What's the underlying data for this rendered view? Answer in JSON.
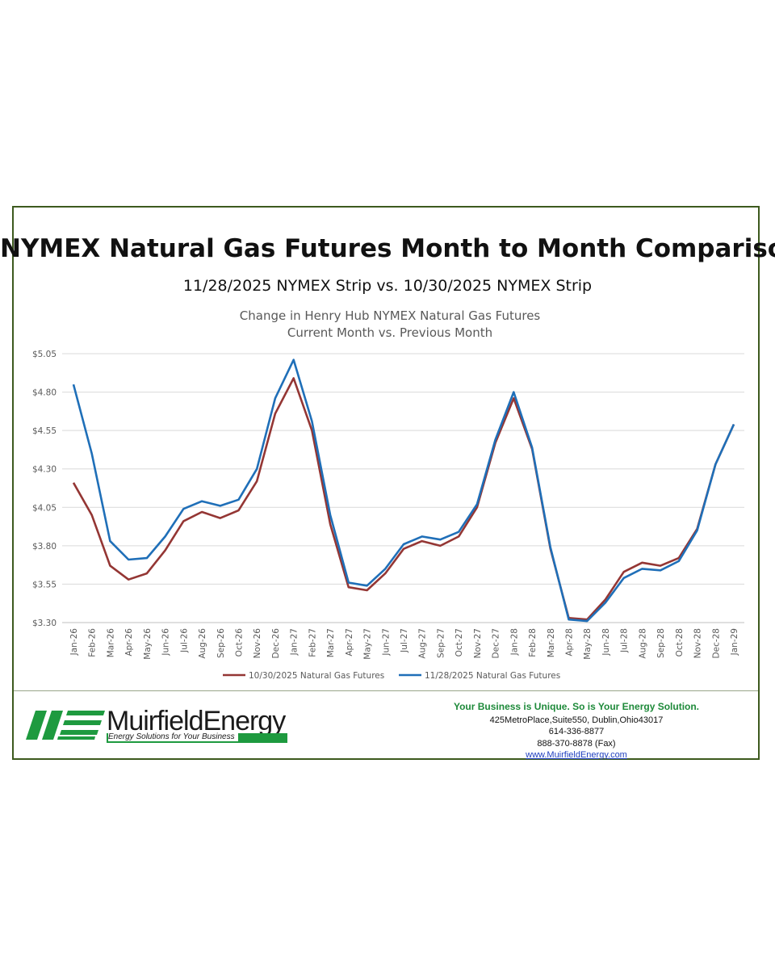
{
  "header": {
    "title": "NYMEX Natural Gas Futures Month to Month Comparison",
    "subtitle": "11/28/2025 NYMEX Strip vs. 10/30/2025 NYMEX Strip"
  },
  "chart_data": {
    "type": "line",
    "title": "Change in Henry Hub NYMEX Natural Gas Futures",
    "subtitle": "Current Month vs. Previous Month",
    "xlabel": "",
    "ylabel": "",
    "ylim": [
      3.3,
      5.05
    ],
    "yticks": [
      "$5.05",
      "$4.80",
      "$4.55",
      "$4.30",
      "$4.05",
      "$3.80",
      "$3.55",
      "$3.30"
    ],
    "ytick_values": [
      5.05,
      4.8,
      4.55,
      4.3,
      4.05,
      3.8,
      3.55,
      3.3
    ],
    "grid": true,
    "legend": "bottom",
    "categories": [
      "Jan-26",
      "Feb-26",
      "Mar-26",
      "Apr-26",
      "May-26",
      "Jun-26",
      "Jul-26",
      "Aug-26",
      "Sep-26",
      "Oct-26",
      "Nov-26",
      "Dec-26",
      "Jan-27",
      "Feb-27",
      "Mar-27",
      "Apr-27",
      "May-27",
      "Jun-27",
      "Jul-27",
      "Aug-27",
      "Sep-27",
      "Oct-27",
      "Nov-27",
      "Dec-27",
      "Jan-28",
      "Feb-28",
      "Mar-28",
      "Apr-28",
      "May-28",
      "Jun-28",
      "Jul-28",
      "Aug-28",
      "Sep-28",
      "Oct-28",
      "Nov-28",
      "Dec-28",
      "Jan-29"
    ],
    "series": [
      {
        "name": "10/30/2025 Natural Gas Futures",
        "color": "#943634",
        "values": [
          4.21,
          4.0,
          3.67,
          3.58,
          3.62,
          3.77,
          3.96,
          4.02,
          3.98,
          4.03,
          4.22,
          4.66,
          4.89,
          4.55,
          3.94,
          3.53,
          3.51,
          3.62,
          3.78,
          3.83,
          3.8,
          3.86,
          4.05,
          4.47,
          4.76,
          4.43,
          3.78,
          3.33,
          3.32,
          3.45,
          3.63,
          3.69,
          3.67,
          3.72,
          3.91,
          4.33,
          4.59
        ]
      },
      {
        "name": "11/28/2025 Natural Gas Futures",
        "color": "#1f6fb8",
        "values": [
          4.85,
          4.4,
          3.83,
          3.71,
          3.72,
          3.86,
          4.04,
          4.09,
          4.06,
          4.1,
          4.3,
          4.76,
          5.01,
          4.61,
          4.0,
          3.56,
          3.54,
          3.65,
          3.81,
          3.86,
          3.84,
          3.89,
          4.07,
          4.49,
          4.8,
          4.44,
          3.79,
          3.32,
          3.31,
          3.43,
          3.59,
          3.65,
          3.64,
          3.7,
          3.9,
          4.33,
          4.59
        ]
      }
    ]
  },
  "footer": {
    "logo_name": "MuirfieldEnergy",
    "logo_tagline": "Energy Solutions for Your Business",
    "brand_color": "#1e9a3f",
    "slogan": "Your Business is Unique. So is Your Energy Solution.",
    "address": "425MetroPlace,Suite550, Dublin,Ohio43017",
    "phone": "614-336-8877",
    "fax": "888-370-8878 (Fax)",
    "website": "www.MuirfieldEnergy.com"
  }
}
